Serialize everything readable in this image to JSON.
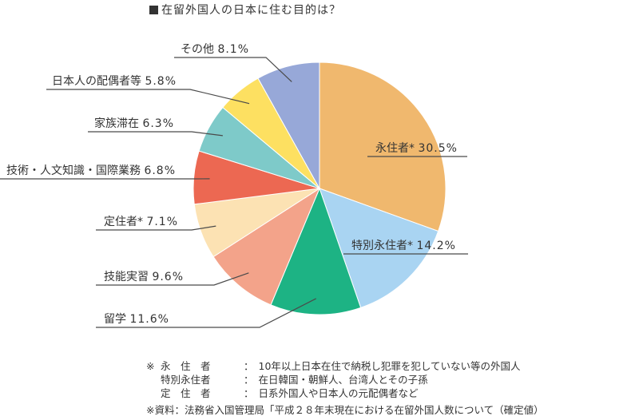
{
  "title": "在留外国人の日本に住む目的は？",
  "chart_data": {
    "type": "pie",
    "title": "在留外国人の日本に住む目的は？",
    "unit": "%",
    "slices": [
      {
        "label": "永住者*",
        "value": 30.5,
        "display": "30.5%",
        "color": "#f0b86e"
      },
      {
        "label": "特別永住者*",
        "value": 14.2,
        "display": "14.2%",
        "color": "#a9d4f2"
      },
      {
        "label": "留学",
        "value": 11.6,
        "display": "11.6%",
        "color": "#1db384"
      },
      {
        "label": "技能実習",
        "value": 9.6,
        "display": "9.6%",
        "color": "#f3a38a"
      },
      {
        "label": "定住者*",
        "value": 7.1,
        "display": "7.1%",
        "color": "#fce2b3"
      },
      {
        "label": "技術・人文知識・国際業務",
        "value": 6.8,
        "display": "6.8%",
        "color": "#ec6852"
      },
      {
        "label": "家族滞在",
        "value": 6.3,
        "display": "6.3%",
        "color": "#7ecac9"
      },
      {
        "label": "日本人の配偶者等",
        "value": 5.8,
        "display": "5.8%",
        "color": "#fde061"
      },
      {
        "label": "その他",
        "value": 8.1,
        "display": "8.1%",
        "color": "#97a8d8"
      }
    ]
  },
  "notes": [
    {
      "prefix": "※",
      "term": "永　住　者",
      "sep": "：",
      "desc": "10年以上日本在住で納税し犯罪を犯していない等の外国人"
    },
    {
      "prefix": "",
      "term": "特別永住者",
      "sep": "：",
      "desc": "在日韓国・朝鮮人、台湾人とその子孫"
    },
    {
      "prefix": "",
      "term": "定　住　者",
      "sep": "：",
      "desc": "日系外国人や日本人の元配偶者など"
    }
  ],
  "source": "※資料：法務省入国管理局「平成２８年末現在における在留外国人数について（確定値）"
}
